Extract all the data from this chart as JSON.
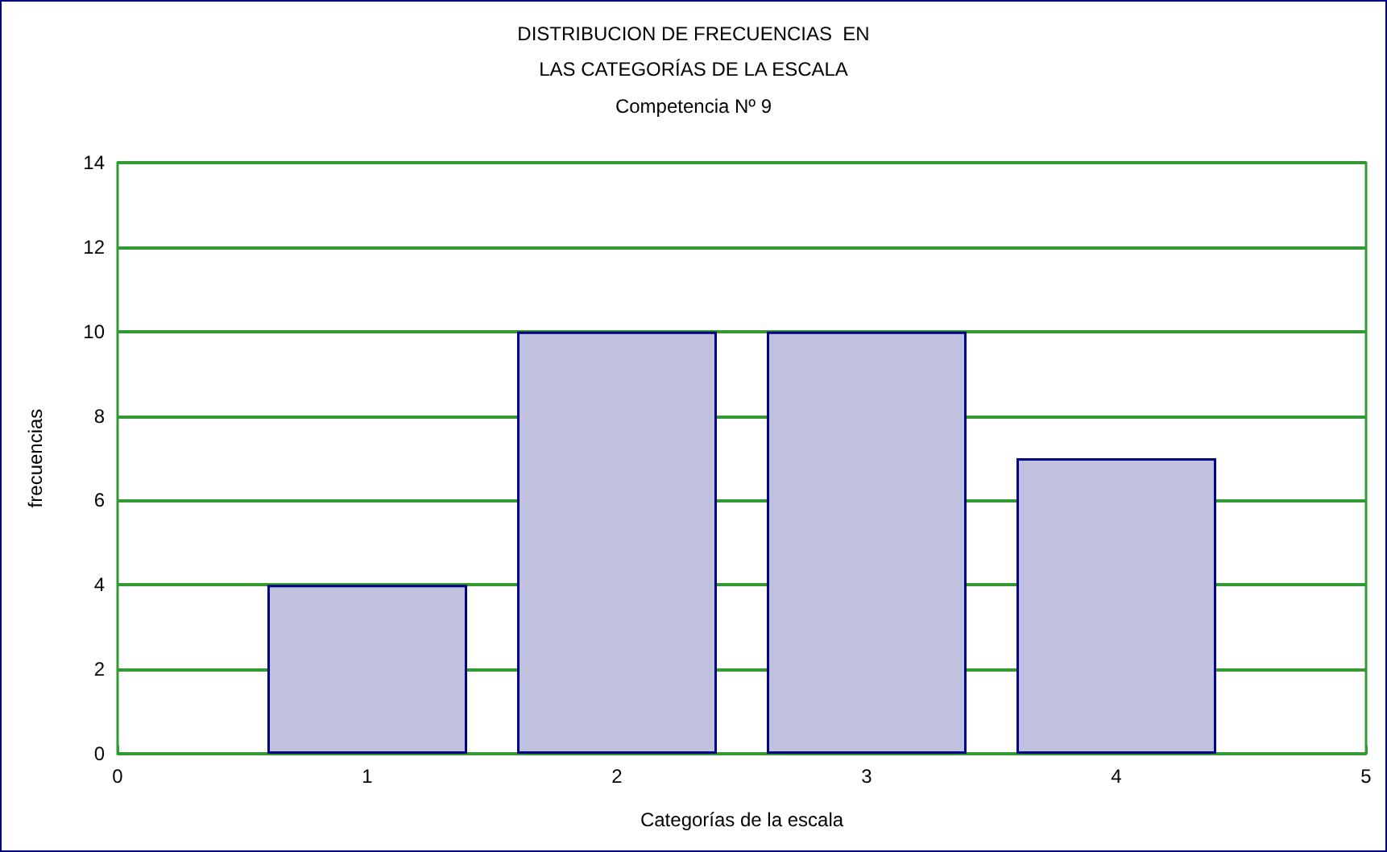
{
  "chart_data": {
    "type": "bar",
    "title": "DISTRIBUCION DE FRECUENCIAS  EN\nLAS CATEGORÍAS DE LA ESCALA",
    "subtitle": "Competencia Nº 9",
    "xlabel": "Categorías de la escala",
    "ylabel": "frecuencias",
    "x": [
      1,
      2,
      3,
      4
    ],
    "values": [
      4,
      10,
      10,
      7
    ],
    "color": "#bfc1df",
    "xlim": [
      0,
      5
    ],
    "xticks": [
      0,
      1,
      2,
      3,
      4,
      5
    ],
    "ylim": [
      0,
      14
    ],
    "yticks": [
      0,
      2,
      4,
      6,
      8,
      10,
      12,
      14
    ],
    "grid": "y"
  }
}
